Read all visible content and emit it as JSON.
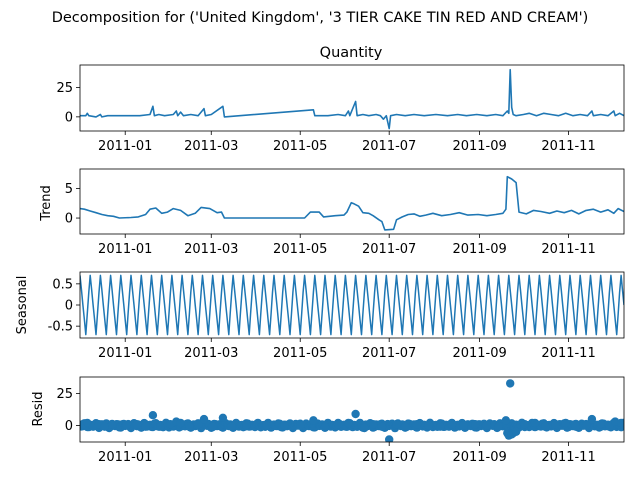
{
  "figure": {
    "suptitle": "Decomposition for ('United Kingdom', '3 TIER CAKE TIN RED AND CREAM')"
  },
  "colors": {
    "series": "#1f77b4",
    "axis": "#000000",
    "background": "#ffffff"
  },
  "chart_data": [
    {
      "type": "line",
      "title": "Quantity",
      "ylabel": "",
      "yticks": [
        0,
        25
      ],
      "ylim": [
        -12,
        44
      ],
      "xlim": [
        "2010-12-01",
        "2011-12-09"
      ],
      "xticks": [
        "2011-01",
        "2011-03",
        "2011-05",
        "2011-07",
        "2011-09",
        "2011-11"
      ],
      "grid": false,
      "series": [
        {
          "baseline": 0,
          "points": [
            [
              "2010-12-01",
              1
            ],
            [
              "2010-12-05",
              1
            ],
            [
              "2010-12-06",
              3
            ],
            [
              "2010-12-07",
              1
            ],
            [
              "2010-12-12",
              0
            ],
            [
              "2010-12-15",
              2
            ],
            [
              "2010-12-16",
              0
            ],
            [
              "2010-12-20",
              1
            ],
            [
              "2011-01-05",
              1
            ],
            [
              "2011-01-11",
              1
            ],
            [
              "2011-01-18",
              2
            ],
            [
              "2011-01-20",
              9
            ],
            [
              "2011-01-21",
              1
            ],
            [
              "2011-01-24",
              2
            ],
            [
              "2011-01-28",
              1
            ],
            [
              "2011-02-03",
              2
            ],
            [
              "2011-02-05",
              5
            ],
            [
              "2011-02-06",
              1
            ],
            [
              "2011-02-08",
              4
            ],
            [
              "2011-02-10",
              1
            ],
            [
              "2011-02-15",
              2
            ],
            [
              "2011-02-20",
              1
            ],
            [
              "2011-02-24",
              7
            ],
            [
              "2011-02-25",
              1
            ],
            [
              "2011-03-01",
              2
            ],
            [
              "2011-03-09",
              9
            ],
            [
              "2011-03-10",
              0
            ],
            [
              "2011-05-10",
              6
            ],
            [
              "2011-05-11",
              1
            ],
            [
              "2011-05-20",
              1
            ],
            [
              "2011-05-27",
              2
            ],
            [
              "2011-06-01",
              1
            ],
            [
              "2011-06-03",
              5
            ],
            [
              "2011-06-04",
              1
            ],
            [
              "2011-06-08",
              13
            ],
            [
              "2011-06-09",
              1
            ],
            [
              "2011-06-13",
              2
            ],
            [
              "2011-06-17",
              1
            ],
            [
              "2011-06-22",
              2
            ],
            [
              "2011-06-25",
              1
            ],
            [
              "2011-06-27",
              -2
            ],
            [
              "2011-06-29",
              1
            ],
            [
              "2011-07-01",
              -10
            ],
            [
              "2011-07-02",
              1
            ],
            [
              "2011-07-06",
              2
            ],
            [
              "2011-07-12",
              1
            ],
            [
              "2011-07-18",
              2
            ],
            [
              "2011-07-25",
              1
            ],
            [
              "2011-08-02",
              2
            ],
            [
              "2011-08-10",
              1
            ],
            [
              "2011-08-17",
              2
            ],
            [
              "2011-08-23",
              1
            ],
            [
              "2011-08-30",
              2
            ],
            [
              "2011-09-06",
              1
            ],
            [
              "2011-09-12",
              2
            ],
            [
              "2011-09-17",
              1
            ],
            [
              "2011-09-20",
              5
            ],
            [
              "2011-09-21",
              3
            ],
            [
              "2011-09-22",
              40
            ],
            [
              "2011-09-23",
              8
            ],
            [
              "2011-09-24",
              2
            ],
            [
              "2011-09-26",
              1
            ],
            [
              "2011-10-01",
              2
            ],
            [
              "2011-10-05",
              3
            ],
            [
              "2011-10-10",
              1
            ],
            [
              "2011-10-15",
              3
            ],
            [
              "2011-10-20",
              2
            ],
            [
              "2011-10-25",
              1
            ],
            [
              "2011-10-30",
              3
            ],
            [
              "2011-11-04",
              1
            ],
            [
              "2011-11-09",
              2
            ],
            [
              "2011-11-14",
              1
            ],
            [
              "2011-11-17",
              5
            ],
            [
              "2011-11-18",
              1
            ],
            [
              "2011-11-23",
              2
            ],
            [
              "2011-11-28",
              1
            ],
            [
              "2011-12-02",
              5
            ],
            [
              "2011-12-03",
              1
            ],
            [
              "2011-12-06",
              3
            ],
            [
              "2011-12-09",
              1
            ]
          ]
        }
      ]
    },
    {
      "type": "line",
      "title": "",
      "ylabel": "Trend",
      "yticks": [
        0,
        5
      ],
      "ylim": [
        -2.7,
        8.3
      ],
      "xlim": [
        "2010-12-01",
        "2011-12-09"
      ],
      "xticks": [
        "2011-01",
        "2011-03",
        "2011-05",
        "2011-07",
        "2011-09",
        "2011-11"
      ],
      "grid": false,
      "series": [
        {
          "points": [
            [
              "2010-12-01",
              1.6
            ],
            [
              "2010-12-04",
              1.5
            ],
            [
              "2010-12-08",
              1.2
            ],
            [
              "2010-12-12",
              0.9
            ],
            [
              "2010-12-16",
              0.6
            ],
            [
              "2010-12-20",
              0.4
            ],
            [
              "2010-12-24",
              0.3
            ],
            [
              "2010-12-28",
              0.0
            ],
            [
              "2011-01-05",
              0.1
            ],
            [
              "2011-01-10",
              0.2
            ],
            [
              "2011-01-15",
              0.6
            ],
            [
              "2011-01-18",
              1.5
            ],
            [
              "2011-01-22",
              1.7
            ],
            [
              "2011-01-26",
              0.8
            ],
            [
              "2011-01-30",
              1.0
            ],
            [
              "2011-02-03",
              1.6
            ],
            [
              "2011-02-08",
              1.3
            ],
            [
              "2011-02-13",
              0.4
            ],
            [
              "2011-02-18",
              0.8
            ],
            [
              "2011-02-22",
              1.8
            ],
            [
              "2011-02-28",
              1.6
            ],
            [
              "2011-03-05",
              0.9
            ],
            [
              "2011-03-08",
              1.0
            ],
            [
              "2011-03-10",
              0.0
            ],
            [
              "2011-04-01",
              0.0
            ],
            [
              "2011-05-04",
              0.0
            ],
            [
              "2011-05-08",
              1.0
            ],
            [
              "2011-05-14",
              1.0
            ],
            [
              "2011-05-17",
              0.2
            ],
            [
              "2011-05-25",
              0.4
            ],
            [
              "2011-05-31",
              0.5
            ],
            [
              "2011-06-02",
              1.0
            ],
            [
              "2011-06-05",
              2.6
            ],
            [
              "2011-06-07",
              2.4
            ],
            [
              "2011-06-10",
              2.0
            ],
            [
              "2011-06-13",
              0.9
            ],
            [
              "2011-06-17",
              0.8
            ],
            [
              "2011-06-20",
              0.4
            ],
            [
              "2011-06-24",
              -0.3
            ],
            [
              "2011-06-26",
              -0.6
            ],
            [
              "2011-06-28",
              -2.0
            ],
            [
              "2011-07-04",
              -1.9
            ],
            [
              "2011-07-06",
              -0.3
            ],
            [
              "2011-07-10",
              0.2
            ],
            [
              "2011-07-14",
              0.6
            ],
            [
              "2011-07-18",
              0.7
            ],
            [
              "2011-07-22",
              0.3
            ],
            [
              "2011-07-26",
              0.5
            ],
            [
              "2011-07-31",
              0.8
            ],
            [
              "2011-08-06",
              0.4
            ],
            [
              "2011-08-12",
              0.6
            ],
            [
              "2011-08-18",
              0.9
            ],
            [
              "2011-08-24",
              0.5
            ],
            [
              "2011-08-31",
              0.6
            ],
            [
              "2011-09-06",
              0.4
            ],
            [
              "2011-09-12",
              0.6
            ],
            [
              "2011-09-17",
              0.8
            ],
            [
              "2011-09-19",
              1.5
            ],
            [
              "2011-09-20",
              7.0
            ],
            [
              "2011-09-23",
              6.6
            ],
            [
              "2011-09-26",
              6.0
            ],
            [
              "2011-09-28",
              1.0
            ],
            [
              "2011-10-03",
              0.7
            ],
            [
              "2011-10-08",
              1.3
            ],
            [
              "2011-10-13",
              1.1
            ],
            [
              "2011-10-19",
              0.8
            ],
            [
              "2011-10-24",
              1.2
            ],
            [
              "2011-10-29",
              0.9
            ],
            [
              "2011-11-03",
              1.3
            ],
            [
              "2011-11-08",
              0.7
            ],
            [
              "2011-11-13",
              1.3
            ],
            [
              "2011-11-18",
              1.5
            ],
            [
              "2011-11-23",
              1.0
            ],
            [
              "2011-11-28",
              1.4
            ],
            [
              "2011-12-02",
              0.8
            ],
            [
              "2011-12-05",
              1.6
            ],
            [
              "2011-12-09",
              1.1
            ]
          ]
        }
      ]
    },
    {
      "type": "line",
      "title": "",
      "ylabel": "Seasonal",
      "yticks": [
        -0.5,
        0.0,
        0.5
      ],
      "ylim": [
        -0.78,
        0.78
      ],
      "xlim": [
        "2010-12-01",
        "2011-12-09"
      ],
      "xticks": [
        "2011-01",
        "2011-03",
        "2011-05",
        "2011-07",
        "2011-09",
        "2011-11"
      ],
      "grid": false,
      "seasonal_pattern": {
        "period_days": 7,
        "start": "2010-12-01",
        "end": "2011-12-09",
        "cycle_values": [
          0.7,
          0.35,
          0.0,
          -0.35,
          -0.7,
          -0.2,
          0.3
        ]
      }
    },
    {
      "type": "scatter",
      "title": "",
      "ylabel": "Resid",
      "yticks": [
        0,
        25
      ],
      "ylim": [
        -13,
        38
      ],
      "xlim": [
        "2010-12-01",
        "2011-12-09"
      ],
      "xticks": [
        "2011-01",
        "2011-03",
        "2011-05",
        "2011-07",
        "2011-09",
        "2011-11"
      ],
      "grid": false,
      "baseline": 0,
      "series": [
        {
          "points": [
            [
              "2010-12-03",
              1
            ],
            [
              "2010-12-06",
              2
            ],
            [
              "2010-12-10",
              -1
            ],
            [
              "2010-12-14",
              1
            ],
            [
              "2010-12-18",
              -1
            ],
            [
              "2010-12-23",
              1
            ],
            [
              "2011-01-02",
              0
            ],
            [
              "2011-01-09",
              1
            ],
            [
              "2011-01-15",
              -1
            ],
            [
              "2011-01-20",
              8
            ],
            [
              "2011-01-25",
              -1
            ],
            [
              "2011-02-01",
              1
            ],
            [
              "2011-02-05",
              3
            ],
            [
              "2011-02-08",
              2
            ],
            [
              "2011-02-14",
              -1
            ],
            [
              "2011-02-20",
              1
            ],
            [
              "2011-02-24",
              5
            ],
            [
              "2011-03-02",
              -1
            ],
            [
              "2011-03-09",
              6
            ],
            [
              "2011-03-15",
              -1
            ],
            [
              "2011-03-25",
              0
            ],
            [
              "2011-04-08",
              0
            ],
            [
              "2011-04-20",
              0
            ],
            [
              "2011-05-01",
              0
            ],
            [
              "2011-05-10",
              4
            ],
            [
              "2011-05-18",
              -1
            ],
            [
              "2011-05-27",
              1
            ],
            [
              "2011-06-03",
              2
            ],
            [
              "2011-06-08",
              9
            ],
            [
              "2011-06-14",
              -2
            ],
            [
              "2011-06-20",
              1
            ],
            [
              "2011-06-26",
              -1
            ],
            [
              "2011-07-01",
              -11
            ],
            [
              "2011-07-06",
              1
            ],
            [
              "2011-07-12",
              -1
            ],
            [
              "2011-07-20",
              1
            ],
            [
              "2011-07-28",
              0
            ],
            [
              "2011-08-05",
              -1
            ],
            [
              "2011-08-13",
              1
            ],
            [
              "2011-08-21",
              0
            ],
            [
              "2011-08-29",
              1
            ],
            [
              "2011-09-06",
              0
            ],
            [
              "2011-09-14",
              -1
            ],
            [
              "2011-09-19",
              4
            ],
            [
              "2011-09-20",
              -6
            ],
            [
              "2011-09-21",
              -8
            ],
            [
              "2011-09-22",
              33
            ],
            [
              "2011-09-23",
              -7
            ],
            [
              "2011-09-24",
              -6
            ],
            [
              "2011-09-26",
              -5
            ],
            [
              "2011-10-02",
              1
            ],
            [
              "2011-10-09",
              2
            ],
            [
              "2011-10-16",
              -1
            ],
            [
              "2011-10-23",
              1
            ],
            [
              "2011-10-30",
              2
            ],
            [
              "2011-11-06",
              -1
            ],
            [
              "2011-11-13",
              0
            ],
            [
              "2011-11-17",
              5
            ],
            [
              "2011-11-23",
              1
            ],
            [
              "2011-11-29",
              -1
            ],
            [
              "2011-12-03",
              3
            ],
            [
              "2011-12-07",
              2
            ]
          ]
        }
      ]
    }
  ]
}
